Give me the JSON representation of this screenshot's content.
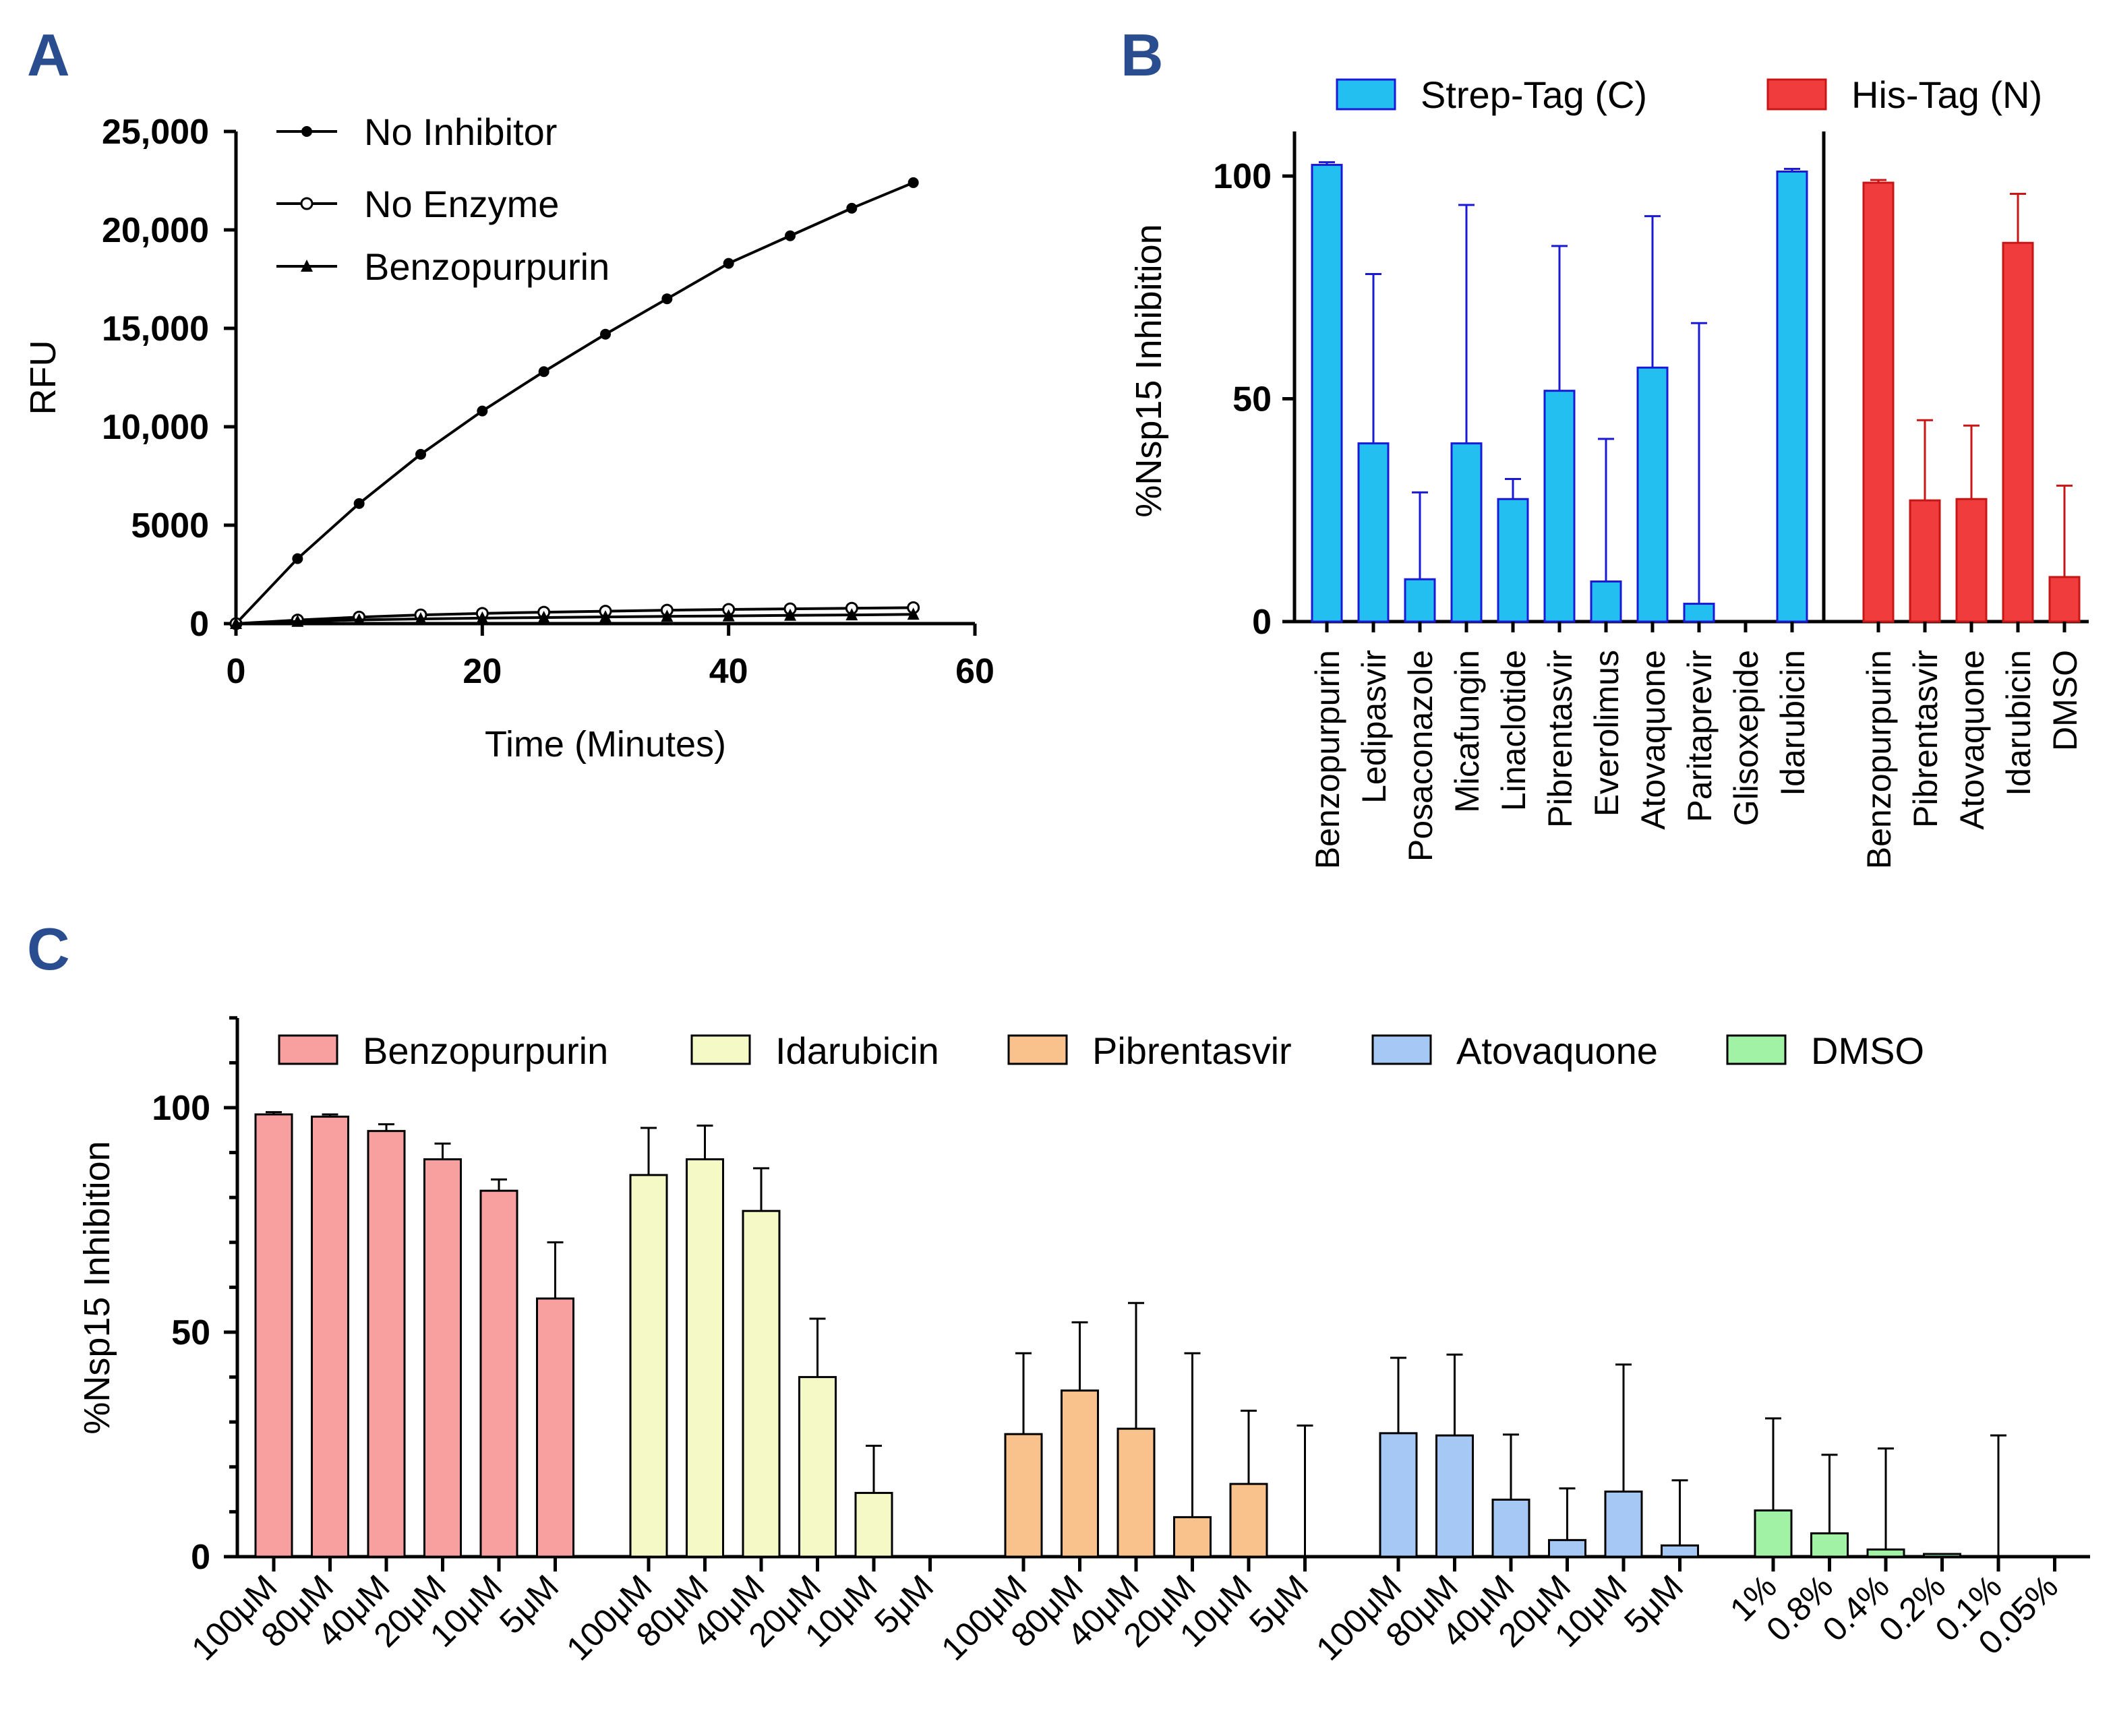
{
  "chart_data": [
    {
      "panel": "A",
      "type": "line",
      "xlabel": "Time (Minutes)",
      "ylabel": "RFU",
      "xlim": [
        0,
        60
      ],
      "ylim": [
        0,
        25000
      ],
      "xticks": [
        "0",
        "20",
        "40",
        "60"
      ],
      "yticks": [
        "0",
        "5000",
        "10,000",
        "15,000",
        "20,000",
        "25,000"
      ],
      "legend_position": "top-left",
      "x": [
        0,
        5,
        10,
        15,
        20,
        25,
        30,
        35,
        40,
        45,
        50,
        55
      ],
      "series": [
        {
          "name": "No Inhibitor",
          "marker": "filled-circle",
          "values": [
            0,
            3300,
            6100,
            8600,
            10800,
            12800,
            14700,
            16500,
            18300,
            19700,
            21100,
            22400
          ]
        },
        {
          "name": "No Enzyme",
          "marker": "open-circle",
          "values": [
            0,
            180,
            330,
            440,
            520,
            580,
            630,
            680,
            720,
            750,
            780,
            810
          ]
        },
        {
          "name": "Benzopurpurin",
          "marker": "triangle",
          "values": [
            0,
            110,
            190,
            240,
            280,
            310,
            340,
            370,
            390,
            420,
            440,
            470
          ]
        }
      ]
    },
    {
      "panel": "B",
      "type": "bar",
      "ylabel": "%Nsp15 Inhibition",
      "ylim": [
        0,
        110
      ],
      "yticks": [
        "0",
        "50",
        "100"
      ],
      "legend_position": "top",
      "series": [
        {
          "name": "Strep-Tag (C)",
          "color": "#22bff0",
          "edge": "#1a1ad6",
          "categories": [
            "Benzopurpurin",
            "Ledipasvir",
            "Posaconazole",
            "Micafungin",
            "Linaclotide",
            "Pibrentasvir",
            "Everolimus",
            "Atovaquone",
            "Paritaprevir",
            "Glisoxepide",
            "Idarubicin"
          ],
          "values": [
            102.5,
            40,
            9.5,
            40,
            27.5,
            51.8,
            9,
            57,
            4,
            0,
            101
          ],
          "errors": [
            0.6,
            38,
            19.5,
            53.5,
            4.5,
            32.5,
            32,
            34,
            63,
            0,
            0.6
          ]
        },
        {
          "name": "His-Tag (N)",
          "color": "#f03c3c",
          "edge": "#c81616",
          "categories": [
            "Benzopurpurin",
            "Pibrentasvir",
            "Atovaquone",
            "Idarubicin",
            "DMSO"
          ],
          "values": [
            98.5,
            27.2,
            27.5,
            85,
            10
          ],
          "errors": [
            0.6,
            18,
            16.5,
            11,
            20.5
          ]
        }
      ]
    },
    {
      "panel": "C",
      "type": "bar",
      "ylabel": "%Nsp15 Inhibition",
      "ylim": [
        0,
        120
      ],
      "yticks": [
        "0",
        "50",
        "100"
      ],
      "legend_position": "top",
      "series": [
        {
          "name": "Benzopurpurin",
          "color": "#f8a0a0",
          "categories": [
            "100μM",
            "80μM",
            "40μM",
            "20μM",
            "10μM",
            "5μM"
          ],
          "values": [
            98.5,
            98,
            94.8,
            88.5,
            81.5,
            57.5
          ],
          "errors": [
            0.5,
            0.5,
            1.5,
            3.5,
            2.5,
            12.5
          ]
        },
        {
          "name": "Idarubicin",
          "color": "#f5f9c6",
          "categories": [
            "100μM",
            "80μM",
            "40μM",
            "20μM",
            "10μM",
            "5μM"
          ],
          "values": [
            85,
            88.5,
            77,
            40,
            14.2,
            0
          ],
          "errors": [
            10.5,
            7.5,
            9.5,
            13,
            10.5,
            0
          ]
        },
        {
          "name": "Pibrentasvir",
          "color": "#f9c18c",
          "categories": [
            "100μM",
            "80μM",
            "40μM",
            "20μM",
            "10μM",
            "5μM"
          ],
          "values": [
            27.3,
            37,
            28.5,
            8.8,
            16.2,
            0
          ],
          "errors": [
            18,
            15.2,
            28,
            36.5,
            16.3,
            29.2
          ]
        },
        {
          "name": "Atovaquone",
          "color": "#a5c8f4",
          "categories": [
            "100μM",
            "80μM",
            "40μM",
            "20μM",
            "10μM",
            "5μM"
          ],
          "values": [
            27.5,
            27,
            12.7,
            3.7,
            14.5,
            2.5
          ],
          "errors": [
            16.8,
            18,
            14.5,
            11.5,
            28.3,
            14.5
          ]
        },
        {
          "name": "DMSO",
          "color": "#a2f2a6",
          "categories": [
            "1%",
            "0.8%",
            "0.4%",
            "0.2%",
            "0.1%",
            "0.05%"
          ],
          "values": [
            10.3,
            5.2,
            1.6,
            0.6,
            0,
            0
          ],
          "errors": [
            20.5,
            17.5,
            22.5,
            0,
            27,
            0
          ]
        }
      ]
    }
  ]
}
